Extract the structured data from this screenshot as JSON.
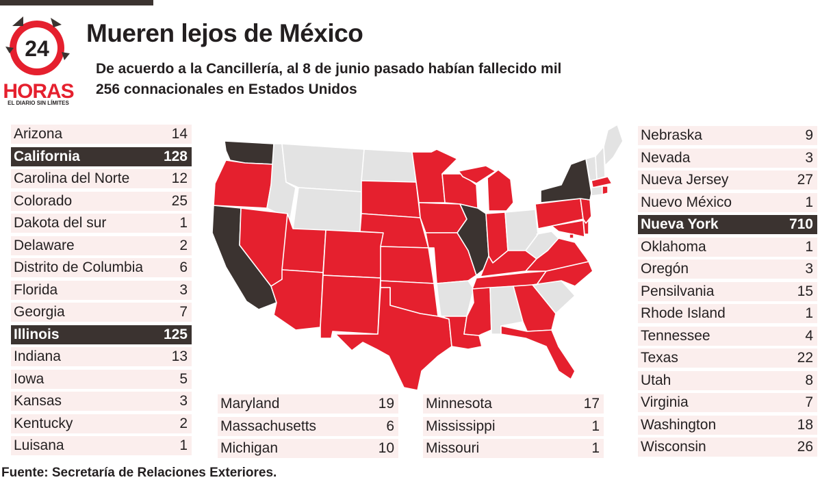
{
  "header": {
    "title": "Mueren lejos de México",
    "subtitle": "De acuerdo a la Cancillería, al 8 de junio pasado habían fallecido mil 256 connacionales en Estados Unidos"
  },
  "logo": {
    "number": "24",
    "word": "HORAS",
    "tagline": "EL DIARIO SIN LÍMITES"
  },
  "colors": {
    "affected": "#e5202e",
    "highlight": "#3b3330",
    "none": "#e3e3e3",
    "row_bg": "#fbeeed"
  },
  "table_left": [
    {
      "name": "Arizona",
      "value": "14"
    },
    {
      "name": "California",
      "value": "128",
      "highlight": true
    },
    {
      "name": "Carolina del Norte",
      "value": "12"
    },
    {
      "name": "Colorado",
      "value": "25"
    },
    {
      "name": "Dakota del sur",
      "value": "1"
    },
    {
      "name": "Delaware",
      "value": "2"
    },
    {
      "name": "Distrito de Columbia",
      "value": "6"
    },
    {
      "name": "Florida",
      "value": "3"
    },
    {
      "name": "Georgia",
      "value": "7"
    },
    {
      "name": "Illinois",
      "value": "125",
      "highlight": true
    },
    {
      "name": "Indiana",
      "value": "13"
    },
    {
      "name": "Iowa",
      "value": "5"
    },
    {
      "name": "Kansas",
      "value": "3"
    },
    {
      "name": "Kentucky",
      "value": "2"
    },
    {
      "name": "Luisana",
      "value": "1"
    }
  ],
  "table_mid_a": [
    {
      "name": "Maryland",
      "value": "19"
    },
    {
      "name": "Massachusetts",
      "value": "6"
    },
    {
      "name": "Michigan",
      "value": "10"
    }
  ],
  "table_mid_b": [
    {
      "name": "Minnesota",
      "value": "17"
    },
    {
      "name": "Mississippi",
      "value": "1"
    },
    {
      "name": "Missouri",
      "value": "1"
    }
  ],
  "table_right": [
    {
      "name": "Nebraska",
      "value": "9"
    },
    {
      "name": "Nevada",
      "value": "3"
    },
    {
      "name": "Nueva Jersey",
      "value": "27"
    },
    {
      "name": "Nuevo México",
      "value": "1"
    },
    {
      "name": "Nueva York",
      "value": "710",
      "highlight": true
    },
    {
      "name": "Oklahoma",
      "value": "1"
    },
    {
      "name": "Oregón",
      "value": "3"
    },
    {
      "name": "Pensilvania",
      "value": "15"
    },
    {
      "name": "Rhode Island",
      "value": "1"
    },
    {
      "name": "Tennessee",
      "value": "4"
    },
    {
      "name": "Texas",
      "value": "22"
    },
    {
      "name": "Utah",
      "value": "8"
    },
    {
      "name": "Virginia",
      "value": "7"
    },
    {
      "name": "Washington",
      "value": "18"
    },
    {
      "name": "Wisconsin",
      "value": "26"
    }
  ],
  "map": {
    "highlighted_states": [
      "Washington",
      "California",
      "Illinois",
      "New York"
    ],
    "affected_states": [
      "Oregon",
      "Nevada",
      "Utah",
      "Arizona",
      "Colorado",
      "New Mexico",
      "Texas",
      "Oklahoma",
      "Kansas",
      "Nebraska",
      "South Dakota",
      "Minnesota",
      "Iowa",
      "Missouri",
      "Louisiana",
      "Wisconsin",
      "Michigan",
      "Indiana",
      "Kentucky",
      "Tennessee",
      "Mississippi",
      "Georgia",
      "Florida",
      "Virginia",
      "North Carolina",
      "Pennsylvania",
      "New Jersey",
      "Delaware",
      "Maryland",
      "District of Columbia",
      "Massachusetts",
      "Rhode Island"
    ],
    "unaffected_states": [
      "Idaho",
      "Montana",
      "Wyoming",
      "North Dakota",
      "Arkansas",
      "Alabama",
      "South Carolina",
      "Ohio",
      "West Virginia",
      "Vermont",
      "New Hampshire",
      "Maine",
      "Connecticut"
    ]
  },
  "footer": {
    "source": "Fuente: Secretaría de Relaciones Exteriores."
  }
}
